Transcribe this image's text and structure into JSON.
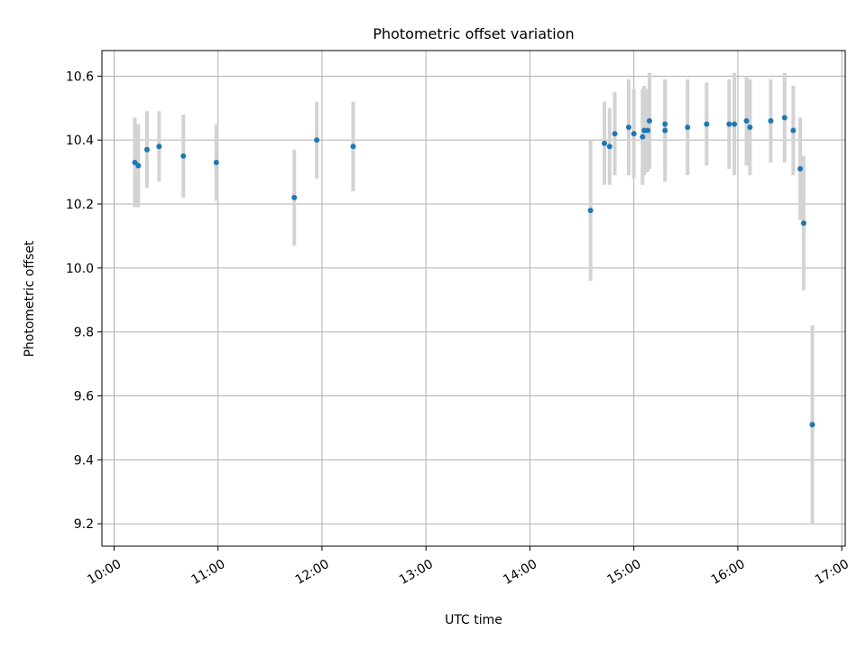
{
  "chart_data": {
    "type": "scatter",
    "title": "Photometric offset variation",
    "xlabel": "UTC time",
    "ylabel": "Photometric offset",
    "x_ticks": [
      "10:00",
      "11:00",
      "12:00",
      "13:00",
      "14:00",
      "15:00",
      "16:00",
      "17:00"
    ],
    "y_ticks": [
      "9.2",
      "9.4",
      "9.6",
      "9.8",
      "10.0",
      "10.2",
      "10.4",
      "10.6"
    ],
    "xlim": [
      "09:53",
      "17:02"
    ],
    "ylim": [
      9.13,
      10.68
    ],
    "grid": true,
    "colors": {
      "marker": "#1f77b4",
      "errorbar": "#d3d3d3",
      "grid": "#b0b0b0"
    },
    "series": [
      {
        "points": [
          {
            "x": "10:12",
            "y": 10.33,
            "err": 0.14
          },
          {
            "x": "10:14",
            "y": 10.32,
            "err": 0.13
          },
          {
            "x": "10:19",
            "y": 10.37,
            "err": 0.12
          },
          {
            "x": "10:26",
            "y": 10.38,
            "err": 0.11
          },
          {
            "x": "10:40",
            "y": 10.35,
            "err": 0.13
          },
          {
            "x": "10:59",
            "y": 10.33,
            "err": 0.12
          },
          {
            "x": "11:44",
            "y": 10.22,
            "err": 0.15
          },
          {
            "x": "11:57",
            "y": 10.4,
            "err": 0.12
          },
          {
            "x": "12:18",
            "y": 10.38,
            "err": 0.14
          },
          {
            "x": "14:35",
            "y": 10.18,
            "err": 0.22
          },
          {
            "x": "14:43",
            "y": 10.39,
            "err": 0.13
          },
          {
            "x": "14:46",
            "y": 10.38,
            "err": 0.12
          },
          {
            "x": "14:49",
            "y": 10.42,
            "err": 0.13
          },
          {
            "x": "14:57",
            "y": 10.44,
            "err": 0.15
          },
          {
            "x": "15:00",
            "y": 10.42,
            "err": 0.14
          },
          {
            "x": "15:05",
            "y": 10.41,
            "err": 0.15
          },
          {
            "x": "15:06",
            "y": 10.43,
            "err": 0.14
          },
          {
            "x": "15:08",
            "y": 10.43,
            "err": 0.13
          },
          {
            "x": "15:09",
            "y": 10.46,
            "err": 0.15
          },
          {
            "x": "15:18",
            "y": 10.43,
            "err": 0.16
          },
          {
            "x": "15:18",
            "y": 10.45,
            "err": 0.14
          },
          {
            "x": "15:31",
            "y": 10.44,
            "err": 0.15
          },
          {
            "x": "15:42",
            "y": 10.45,
            "err": 0.13
          },
          {
            "x": "15:55",
            "y": 10.45,
            "err": 0.14
          },
          {
            "x": "15:58",
            "y": 10.45,
            "err": 0.16
          },
          {
            "x": "16:05",
            "y": 10.46,
            "err": 0.14
          },
          {
            "x": "16:07",
            "y": 10.44,
            "err": 0.15
          },
          {
            "x": "16:19",
            "y": 10.46,
            "err": 0.13
          },
          {
            "x": "16:27",
            "y": 10.47,
            "err": 0.14
          },
          {
            "x": "16:32",
            "y": 10.43,
            "err": 0.14
          },
          {
            "x": "16:36",
            "y": 10.31,
            "err": 0.16
          },
          {
            "x": "16:38",
            "y": 10.14,
            "err": 0.21
          },
          {
            "x": "16:43",
            "y": 9.51,
            "err": 0.31
          }
        ]
      }
    ]
  }
}
